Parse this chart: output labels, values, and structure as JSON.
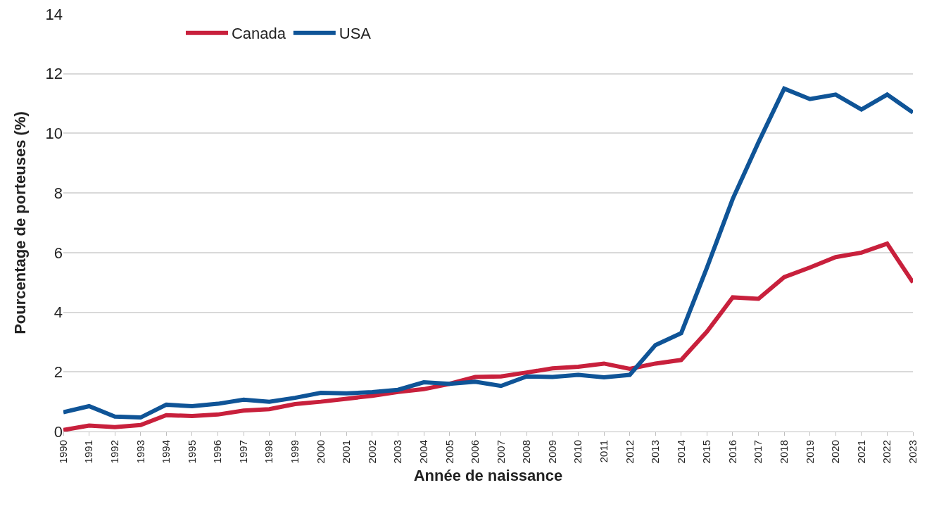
{
  "chart_data": {
    "type": "line",
    "xlabel": "Année de naissance",
    "ylabel": "Pourcentage de porteuses (%)",
    "categories": [
      "1990",
      "1991",
      "1992",
      "1993",
      "1994",
      "1995",
      "1996",
      "1997",
      "1998",
      "1999",
      "2000",
      "2001",
      "2002",
      "2003",
      "2004",
      "2005",
      "2006",
      "2007",
      "2008",
      "2009",
      "2010",
      "2011",
      "2012",
      "2013",
      "2014",
      "2015",
      "2016",
      "2017",
      "2018",
      "2019",
      "2020",
      "2021",
      "2022",
      "2023"
    ],
    "series": [
      {
        "name": "Canada",
        "color": "#c8203c",
        "values": [
          0.05,
          0.2,
          0.15,
          0.22,
          0.55,
          0.52,
          0.57,
          0.7,
          0.75,
          0.92,
          1.0,
          1.1,
          1.2,
          1.33,
          1.42,
          1.6,
          1.83,
          1.85,
          1.98,
          2.12,
          2.17,
          2.28,
          2.1,
          2.28,
          2.4,
          3.35,
          4.5,
          4.45,
          5.18,
          5.5,
          5.85,
          6.0,
          6.3,
          5.0
        ]
      },
      {
        "name": "USA",
        "color": "#0f5497",
        "values": [
          0.65,
          0.85,
          0.5,
          0.47,
          0.9,
          0.85,
          0.93,
          1.07,
          1.0,
          1.13,
          1.3,
          1.28,
          1.32,
          1.4,
          1.65,
          1.6,
          1.67,
          1.53,
          1.85,
          1.83,
          1.9,
          1.82,
          1.9,
          2.9,
          3.3,
          5.5,
          7.8,
          9.7,
          11.5,
          11.15,
          11.3,
          10.8,
          11.3,
          10.7
        ]
      }
    ],
    "ylim": [
      0,
      14
    ],
    "yticks": [
      0,
      2,
      4,
      6,
      8,
      10,
      12,
      14
    ],
    "grid": "y",
    "legend": "top left",
    "marker": "none",
    "line_style": "solid"
  }
}
